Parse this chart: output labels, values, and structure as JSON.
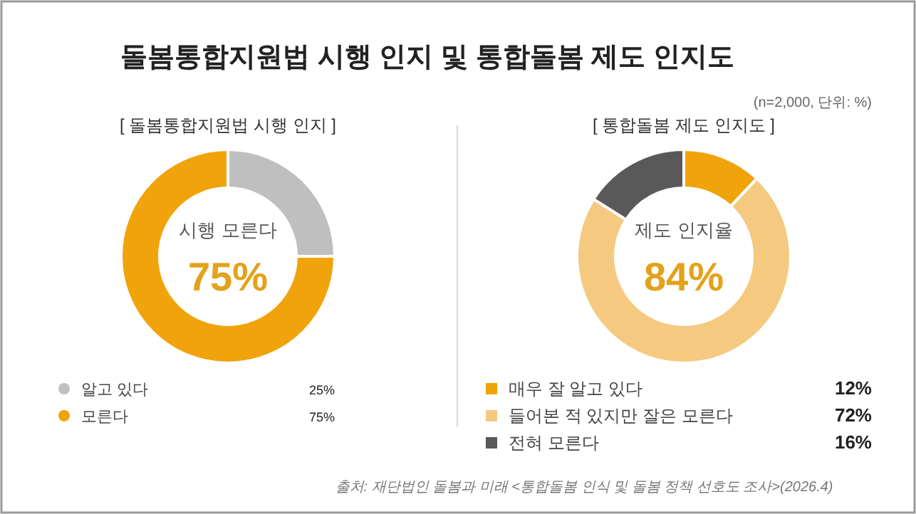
{
  "chart_data": [
    {
      "type": "other",
      "title": "돌봄통합지원법 시행 인지 및 통합돌봄 제도 인지도",
      "annotations": [
        "(n=2,000, 단위: %)",
        "출처: 재단법인 돌봄과 미래 <통합돌봄 인식 및 돌봄 정책 선호도 조사>(2026.4)"
      ]
    },
    {
      "type": "donut",
      "title": "[ 돌봄통합지원법 시행 인지 ]",
      "categories": [
        "알고 있다",
        "모른다"
      ],
      "values": [
        25,
        75
      ],
      "colors": [
        "#bfbfbf",
        "#f0a30a"
      ],
      "value_labels": [
        "25%",
        "75%"
      ],
      "legend": "bottom",
      "marker": "circle",
      "annotations": [
        "시행 모른다",
        "75%"
      ]
    },
    {
      "type": "donut",
      "title": "[ 통합돌봄 제도 인지도 ]",
      "categories": [
        "매우 잘 알고 있다",
        "들어본 적 있지만 잘은 모른다",
        "전혀 모른다"
      ],
      "values": [
        12,
        72,
        16
      ],
      "colors": [
        "#f0a30a",
        "#f5c97f",
        "#595959"
      ],
      "value_labels": [
        "12%",
        "72%",
        "16%"
      ],
      "legend": "bottom",
      "marker": "square",
      "annotations": [
        "제도 인지율",
        "84%"
      ]
    }
  ]
}
